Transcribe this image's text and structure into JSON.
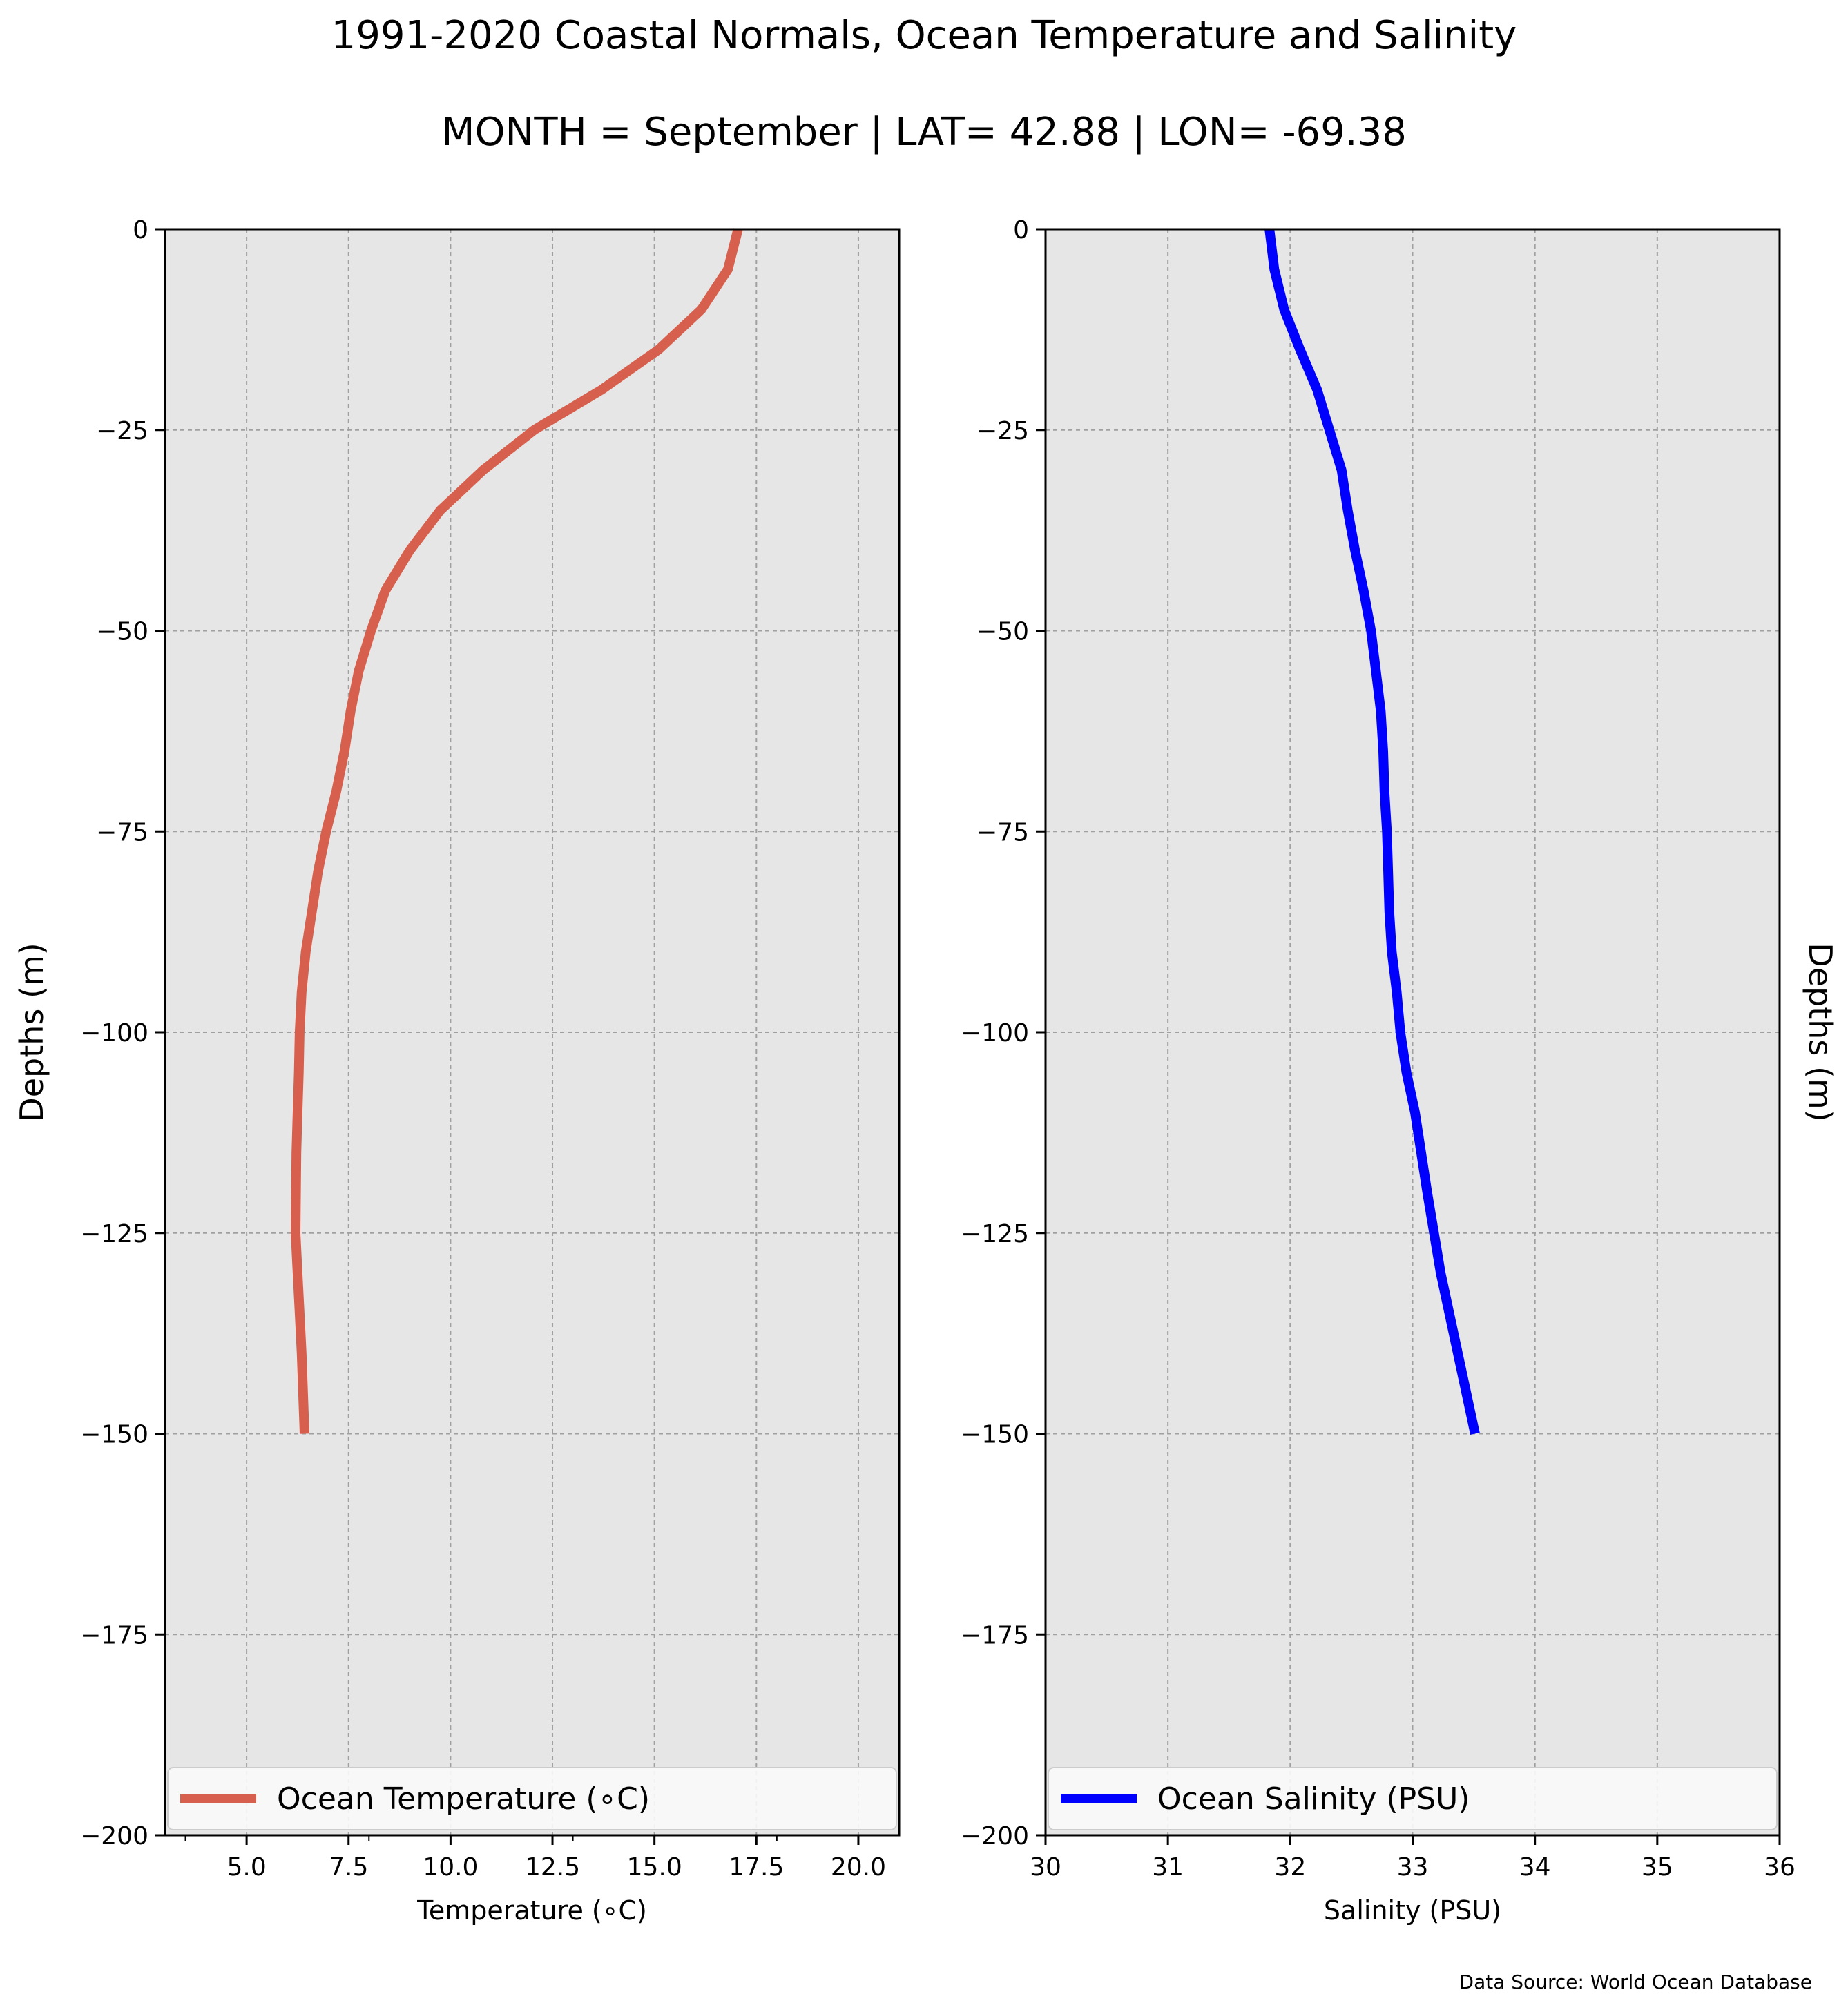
{
  "title": "1991-2020 Coastal Normals, Ocean Temperature and Salinity",
  "subtitle": "MONTH = September | LAT= 42.88 | LON= -69.38",
  "source": "Data Source: World Ocean Database",
  "colors": {
    "temperature": "#d6604d",
    "salinity": "#0000ff",
    "panel_bg": "#e6e6e6",
    "grid": "#a0a0a0"
  },
  "chart_data": [
    {
      "type": "line",
      "xlabel": "Temperature ($^\\circ$C)",
      "xlabel_display": "Temperature (∘C)",
      "ylabel": "Depths (m)",
      "xlim": [
        3.0,
        21.0
      ],
      "ylim": [
        -200,
        0
      ],
      "xticks": [
        5.0,
        7.5,
        10.0,
        12.5,
        15.0,
        17.5,
        20.0
      ],
      "xtick_labels": [
        "5.0",
        "7.5",
        "10.0",
        "12.5",
        "15.0",
        "17.5",
        "20.0"
      ],
      "yticks": [
        0,
        -25,
        -50,
        -75,
        -100,
        -125,
        -150,
        -175,
        -200
      ],
      "ytick_labels": [
        "0",
        "−25",
        "−50",
        "−75",
        "−100",
        "−125",
        "−150",
        "−175",
        "−200"
      ],
      "grid": true,
      "legend_position": "lower-center",
      "series": [
        {
          "name": "Ocean Temperature (∘C)",
          "x": [
            17.05,
            16.8,
            16.15,
            15.1,
            13.7,
            12.05,
            10.8,
            9.75,
            9.0,
            8.4,
            8.05,
            7.75,
            7.55,
            7.4,
            7.2,
            6.95,
            6.75,
            6.6,
            6.45,
            6.35,
            6.3,
            6.28,
            6.25,
            6.22,
            6.2,
            6.25,
            6.3,
            6.35,
            6.42
          ],
          "y": [
            0,
            -5,
            -10,
            -15,
            -20,
            -25,
            -30,
            -35,
            -40,
            -45,
            -50,
            -55,
            -60,
            -65,
            -70,
            -75,
            -80,
            -85,
            -90,
            -95,
            -100,
            -105,
            -110,
            -115,
            -125,
            -130,
            -135,
            -140,
            -150
          ]
        }
      ]
    },
    {
      "type": "line",
      "xlabel": "Salinity (PSU)",
      "ylabel": "Depths (m)",
      "xlim": [
        30,
        36
      ],
      "ylim": [
        -200,
        0
      ],
      "xticks": [
        30,
        31,
        32,
        33,
        34,
        35,
        36
      ],
      "xtick_labels": [
        "30",
        "31",
        "32",
        "33",
        "34",
        "35",
        "36"
      ],
      "yticks": [
        0,
        -25,
        -50,
        -75,
        -100,
        -125,
        -150,
        -175,
        -200
      ],
      "ytick_labels": [
        "0",
        "−25",
        "−50",
        "−75",
        "−100",
        "−125",
        "−150",
        "−175",
        "−200"
      ],
      "grid": true,
      "legend_position": "lower-center",
      "series": [
        {
          "name": "Ocean Salinity (PSU)",
          "x": [
            31.83,
            31.87,
            31.95,
            32.08,
            32.22,
            32.32,
            32.42,
            32.47,
            32.53,
            32.6,
            32.66,
            32.7,
            32.74,
            32.76,
            32.77,
            32.79,
            32.8,
            32.81,
            32.83,
            32.87,
            32.9,
            32.95,
            33.02,
            33.12,
            33.23,
            33.51
          ],
          "y": [
            0,
            -5,
            -10,
            -15,
            -20,
            -25,
            -30,
            -35,
            -40,
            -45,
            -50,
            -55,
            -60,
            -65,
            -70,
            -75,
            -80,
            -85,
            -90,
            -95,
            -100,
            -105,
            -110,
            -120,
            -130,
            -150
          ]
        }
      ]
    }
  ]
}
